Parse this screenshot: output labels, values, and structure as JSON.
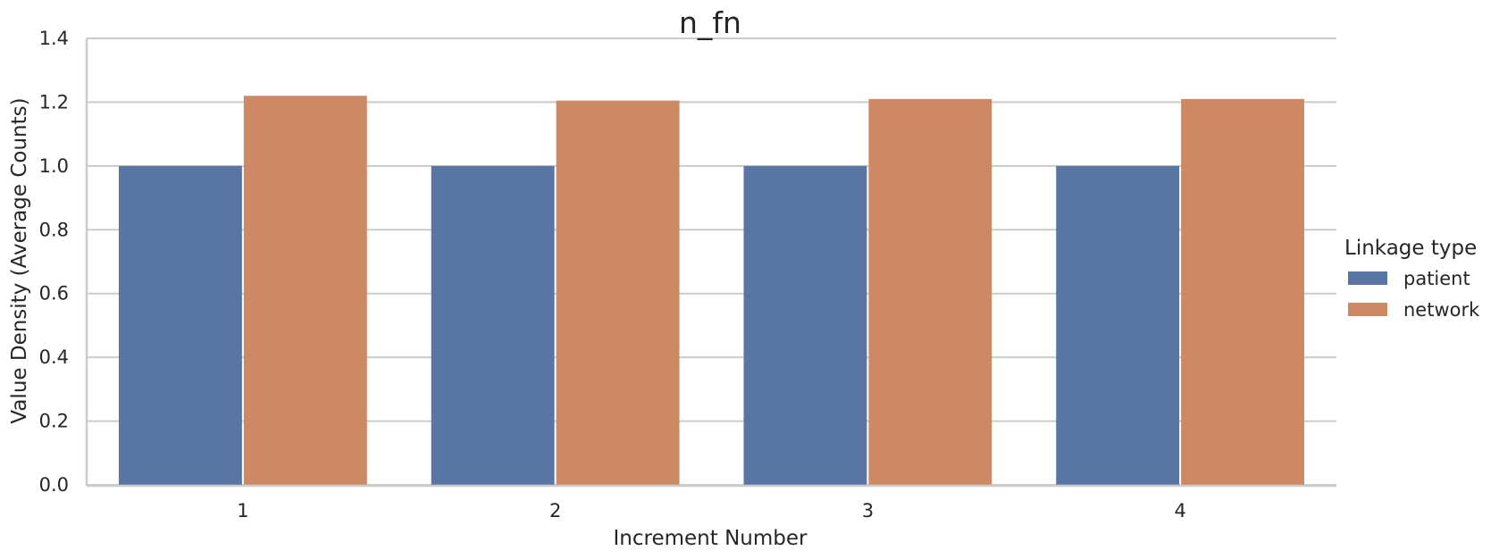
{
  "chart_data": {
    "type": "bar",
    "title": "n_fn",
    "xlabel": "Increment Number",
    "ylabel": "Value Density (Average Counts)",
    "categories": [
      "1",
      "2",
      "3",
      "4"
    ],
    "series": [
      {
        "name": "patient",
        "values": [
          1.0,
          1.0,
          1.0,
          1.0
        ],
        "color": "#5975a4"
      },
      {
        "name": "network",
        "values": [
          1.22,
          1.205,
          1.21,
          1.21
        ],
        "color": "#cc8963"
      }
    ],
    "ylim": [
      0,
      1.4
    ],
    "yticks": [
      "0.0",
      "0.2",
      "0.4",
      "0.6",
      "0.8",
      "1.0",
      "1.2",
      "1.4"
    ],
    "grid": "horizontal",
    "legend": {
      "title": "Linkage type",
      "placement": "right"
    }
  }
}
